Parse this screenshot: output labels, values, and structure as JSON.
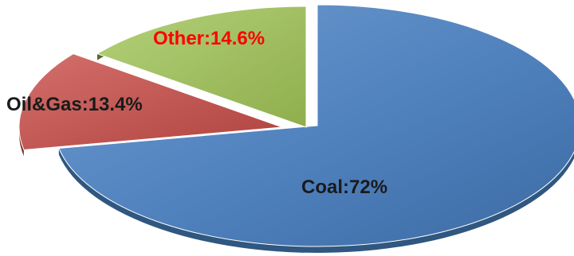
{
  "chart_data": {
    "type": "pie",
    "style": "3d-exploded",
    "slices": [
      {
        "name": "Coal",
        "value": 72,
        "label": "Coal:72%",
        "color": "#4f81bd",
        "side_color": "#2f5780",
        "label_color": "#1a1a1a"
      },
      {
        "name": "Oil&Gas",
        "value": 13.4,
        "label": "Oil&Gas:13.4%",
        "color": "#c0504d",
        "side_color": "#7c2d2a",
        "label_color": "#1a1a1a"
      },
      {
        "name": "Other",
        "value": 14.6,
        "label": "Other:14.6%",
        "color": "#9bbb59",
        "side_color": "#55692c",
        "label_color": "#ff0000"
      }
    ],
    "legend": "none",
    "grid": false
  }
}
